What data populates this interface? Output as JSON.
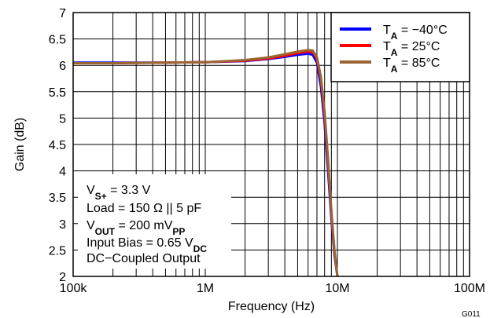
{
  "chart_data": {
    "type": "line",
    "xlabel": "Frequency (Hz)",
    "ylabel": "Gain (dB)",
    "x_scale": "log",
    "xlim": [
      100000,
      100000000
    ],
    "ylim": [
      2,
      7
    ],
    "grid": true,
    "legend_position": "top-right",
    "x_ticks": [
      "100k",
      "1M",
      "10M",
      "100M"
    ],
    "y_ticks": [
      "2",
      "2.5",
      "3",
      "3.5",
      "4",
      "4.5",
      "5",
      "5.5",
      "6",
      "6.5",
      "7"
    ],
    "figure_id": "G011",
    "annotation": {
      "line1": {
        "main": "V",
        "sub": "S+",
        "rest": " = 3.3 V"
      },
      "line2": "Load = 150 Ω || 5 pF",
      "line3": {
        "main": "V",
        "sub": "OUT",
        "rest": " = 200 mV",
        "sub2": "PP"
      },
      "line4": {
        "main": "Input Bias = 0.65 V",
        "sub": "DC"
      },
      "line5": "DC−Coupled Output"
    },
    "series": [
      {
        "name": "T_A = −40°C",
        "legend": {
          "main": "T",
          "sub": "A",
          "rest": " = −40°C"
        },
        "color": "#0000ff",
        "x": [
          100000,
          200000,
          500000,
          1000000,
          2000000,
          3000000,
          4000000,
          5000000,
          6000000,
          6500000,
          7000000,
          7500000,
          8000000,
          8500000,
          9000000,
          9500000,
          10000000
        ],
        "y": [
          6.05,
          6.05,
          6.05,
          6.06,
          6.08,
          6.12,
          6.16,
          6.2,
          6.22,
          6.2,
          6.05,
          5.6,
          4.9,
          4.0,
          3.1,
          2.4,
          2.0
        ]
      },
      {
        "name": "T_A = 25°C",
        "legend": {
          "main": "T",
          "sub": "A",
          "rest": " = 25°C"
        },
        "color": "#ff0000",
        "x": [
          100000,
          200000,
          500000,
          1000000,
          2000000,
          3000000,
          4000000,
          5000000,
          6000000,
          6500000,
          7000000,
          7500000,
          8000000,
          8500000,
          9000000,
          9500000,
          10000000
        ],
        "y": [
          6.04,
          6.04,
          6.05,
          6.06,
          6.09,
          6.13,
          6.18,
          6.23,
          6.26,
          6.25,
          6.12,
          5.72,
          5.05,
          4.15,
          3.2,
          2.45,
          2.0
        ]
      },
      {
        "name": "T_A = 85°C",
        "legend": {
          "main": "T",
          "sub": "A",
          "rest": " = 85°C"
        },
        "color": "#996633",
        "x": [
          100000,
          200000,
          500000,
          1000000,
          2000000,
          3000000,
          4000000,
          5000000,
          6000000,
          6500000,
          7000000,
          7500000,
          8000000,
          8500000,
          9000000,
          9500000,
          10000000
        ],
        "y": [
          6.04,
          6.04,
          6.05,
          6.06,
          6.1,
          6.15,
          6.21,
          6.26,
          6.29,
          6.28,
          6.15,
          5.78,
          5.12,
          4.22,
          3.25,
          2.48,
          2.0
        ]
      }
    ]
  }
}
